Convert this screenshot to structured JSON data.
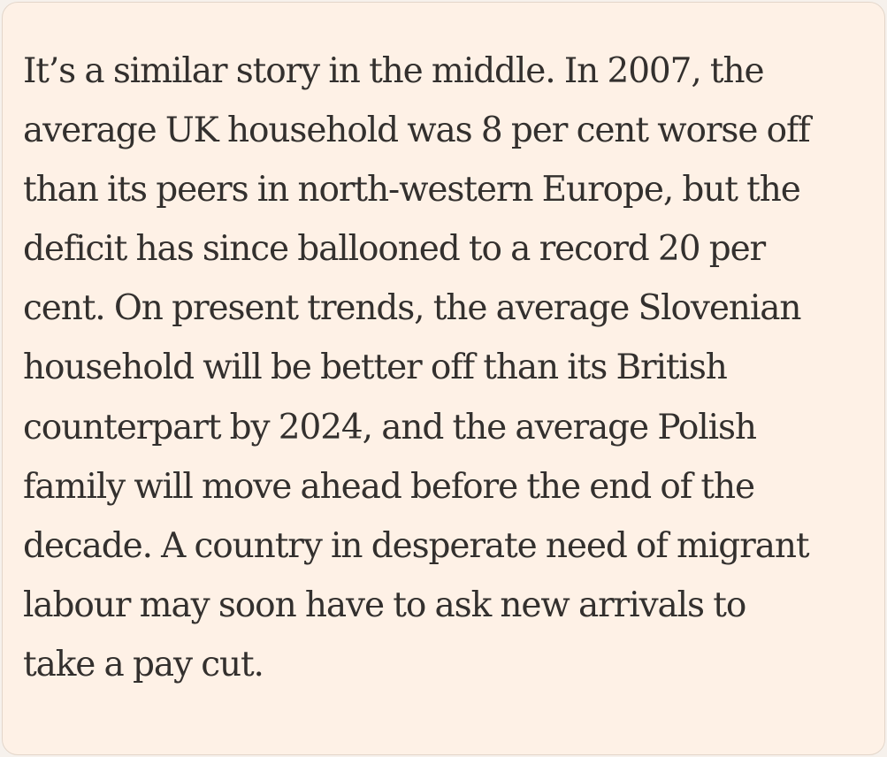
{
  "article": {
    "lines": [
      "It’s a similar story in the middle. In 2007, the",
      "average UK household was 8 per cent worse off",
      "than its peers in north-western Europe, but the",
      "deficit has since ballooned to a record 20 per",
      "cent. On present trends, the average Slovenian",
      "household will be better off than its British",
      "counterpart by 2024, and the average Polish",
      "family will move ahead before the end of the",
      "decade. A country in desperate need of migrant",
      "labour may soon have to ask new arrivals to",
      "take a pay cut."
    ]
  },
  "colors": {
    "background": "#fef1e6",
    "text": "#33302e",
    "border": "#e3d6ca"
  }
}
